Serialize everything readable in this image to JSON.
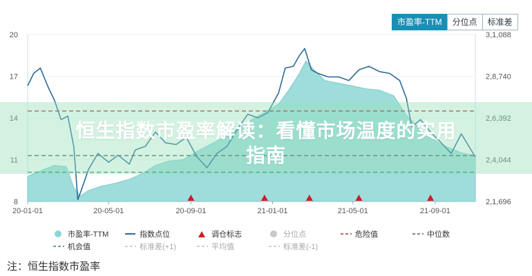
{
  "tabs": [
    "市盈率-TTM",
    "分位点",
    "标准差"
  ],
  "active_tab": 0,
  "overlay_title_line1": "恒生指数市盈率解读：看懂市场温度的实用",
  "overlay_title_line2": "指南",
  "note": "注：恒生指数市盈率",
  "colors": {
    "pe_area": "#8ed6d6",
    "index_line": "#2b6a96",
    "signal": "#cc1f1f",
    "danger": "#b22a2a",
    "median": "#555555",
    "opportunity": "#2e8b57",
    "quantile": "#c8c8c8"
  },
  "legend": [
    {
      "name": "pe-legend",
      "label": "市盈率-TTM",
      "swatch": "circle",
      "color": "#8ed6d6",
      "muted": false
    },
    {
      "name": "index-legend",
      "label": "指数点位",
      "swatch": "line",
      "color": "#2b6a96",
      "muted": false
    },
    {
      "name": "signal-legend",
      "label": "调仓标志",
      "swatch": "triangle",
      "color": "#cc1f1f",
      "muted": false
    },
    {
      "name": "quantile-legend",
      "label": "分位点",
      "swatch": "circle",
      "color": "#c8c8c8",
      "muted": true
    },
    {
      "name": "danger-legend",
      "label": "危险值",
      "swatch": "dash",
      "color": "#b22a2a",
      "muted": false
    },
    {
      "name": "median-legend",
      "label": "中位数",
      "swatch": "dash",
      "color": "#555555",
      "muted": false
    },
    {
      "name": "opportunity-legend",
      "label": "机会值",
      "swatch": "dash",
      "color": "#2e8b57",
      "muted": false
    },
    {
      "name": "std-plus-legend",
      "label": "标准差(+1)",
      "swatch": "dash",
      "color": "#c0c0c0",
      "muted": true
    },
    {
      "name": "mean-legend",
      "label": "平均值",
      "swatch": "dash",
      "color": "#c0c0c0",
      "muted": true
    },
    {
      "name": "std-minus-legend",
      "label": "标准差(-1)",
      "swatch": "dash",
      "color": "#c0c0c0",
      "muted": true
    }
  ],
  "chart_data": {
    "type": "line",
    "x_start": "2020-01-01",
    "x_end": "2021-10-31",
    "x_ticks": [
      "20-01-01",
      "20-05-01",
      "20-09-01",
      "21-01-01",
      "21-05-01",
      "21-09-01"
    ],
    "x_tick_dates": [
      "2020-01-01",
      "2020-05-01",
      "2020-09-01",
      "2021-01-01",
      "2021-05-01",
      "2021-09-01"
    ],
    "y_left_ticks": [
      "20",
      "17",
      "14",
      "11",
      "8"
    ],
    "y_left_range": [
      8,
      20
    ],
    "y_right_ticks": [
      "3,1,088",
      "2,8,740",
      "2,6,392",
      "2,4,044",
      "2,1,696"
    ],
    "y_right_range": [
      21696,
      31088
    ],
    "danger_value": 14.5,
    "median_value": 11.3,
    "opportunity_value": 10.1,
    "series": [
      {
        "name": "市盈率-TTM",
        "kind": "area",
        "dates": [
          "2020-01-01",
          "2020-01-20",
          "2020-02-10",
          "2020-02-28",
          "2020-03-10",
          "2020-03-20",
          "2020-04-01",
          "2020-04-20",
          "2020-05-10",
          "2020-06-01",
          "2020-06-20",
          "2020-07-10",
          "2020-07-30",
          "2020-08-20",
          "2020-09-10",
          "2020-09-30",
          "2020-10-20",
          "2020-11-10",
          "2020-12-01",
          "2020-12-20",
          "2021-01-10",
          "2021-01-25",
          "2021-02-10",
          "2021-02-20",
          "2021-03-05",
          "2021-03-20",
          "2021-04-10",
          "2021-05-01",
          "2021-05-20",
          "2021-06-10",
          "2021-07-01",
          "2021-07-20",
          "2021-08-10",
          "2021-08-25",
          "2021-09-10",
          "2021-09-25",
          "2021-10-10",
          "2021-10-31"
        ],
        "values": [
          9.8,
          10.2,
          10.6,
          10.5,
          9.0,
          8.4,
          8.8,
          9.1,
          9.3,
          9.6,
          10.0,
          10.6,
          10.9,
          11.0,
          11.6,
          12.1,
          12.6,
          13.2,
          13.9,
          14.4,
          15.0,
          16.0,
          17.2,
          18.1,
          17.4,
          16.7,
          16.5,
          16.3,
          16.1,
          16.0,
          15.6,
          14.2,
          13.2,
          12.6,
          12.1,
          11.8,
          11.5,
          11.3
        ]
      },
      {
        "name": "指数点位",
        "kind": "line",
        "dates": [
          "2020-01-01",
          "2020-01-10",
          "2020-01-20",
          "2020-02-01",
          "2020-02-10",
          "2020-02-20",
          "2020-03-01",
          "2020-03-10",
          "2020-03-16",
          "2020-03-20",
          "2020-04-01",
          "2020-04-15",
          "2020-05-01",
          "2020-05-15",
          "2020-06-01",
          "2020-06-10",
          "2020-06-25",
          "2020-07-10",
          "2020-07-25",
          "2020-08-10",
          "2020-08-25",
          "2020-09-10",
          "2020-09-25",
          "2020-10-10",
          "2020-10-25",
          "2020-11-10",
          "2020-11-25",
          "2020-12-10",
          "2020-12-25",
          "2021-01-10",
          "2021-01-20",
          "2021-02-01",
          "2021-02-10",
          "2021-02-18",
          "2021-02-28",
          "2021-03-10",
          "2021-03-25",
          "2021-04-10",
          "2021-04-25",
          "2021-05-10",
          "2021-05-25",
          "2021-06-10",
          "2021-06-25",
          "2021-07-10",
          "2021-07-20",
          "2021-07-28",
          "2021-08-10",
          "2021-08-25",
          "2021-09-10",
          "2021-09-25",
          "2021-10-10",
          "2021-10-31"
        ],
        "values": [
          28200,
          28900,
          29200,
          28100,
          27400,
          26300,
          26500,
          24800,
          21800,
          22200,
          23500,
          24400,
          23900,
          24300,
          23800,
          24600,
          24800,
          25600,
          25000,
          24900,
          25300,
          24200,
          23600,
          24400,
          24800,
          25800,
          26600,
          26400,
          26700,
          27800,
          29200,
          29300,
          29900,
          30300,
          29100,
          28900,
          28700,
          28700,
          28500,
          29100,
          29300,
          29000,
          28900,
          28500,
          27500,
          25900,
          26300,
          25600,
          25000,
          24400,
          25500,
          24200
        ]
      }
    ],
    "signals": [
      "2020-09-01",
      "2020-12-20",
      "2021-02-25",
      "2021-05-10",
      "2021-08-25"
    ]
  }
}
